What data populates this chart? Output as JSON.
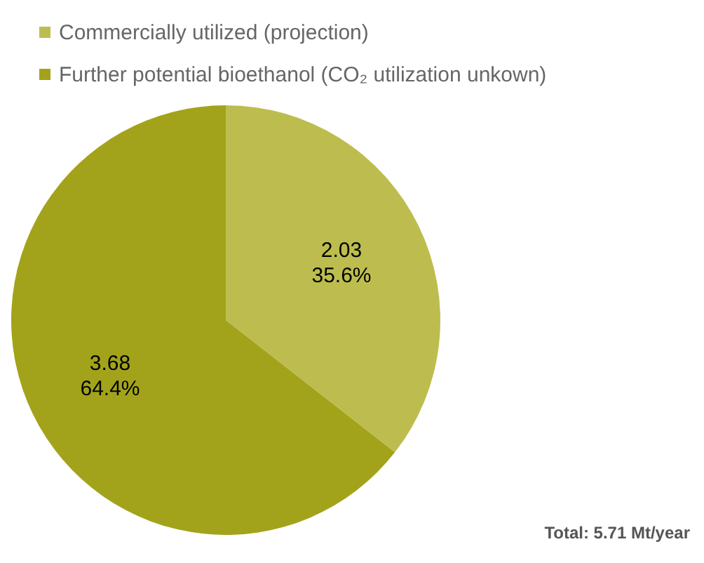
{
  "chart_data": {
    "type": "pie",
    "categories": [
      "Commercially utilized (projection)",
      "Further potential bioethanol (CO₂ utilization unkown)"
    ],
    "values": [
      2.03,
      3.68
    ],
    "colors": [
      "#bdbd4f",
      "#a3a31b"
    ],
    "value_labels": [
      "2.03\n35.6%",
      "3.68\n64.4%"
    ],
    "legend": "top",
    "annotations": [
      "Total: 5.71 Mt/year"
    ]
  }
}
